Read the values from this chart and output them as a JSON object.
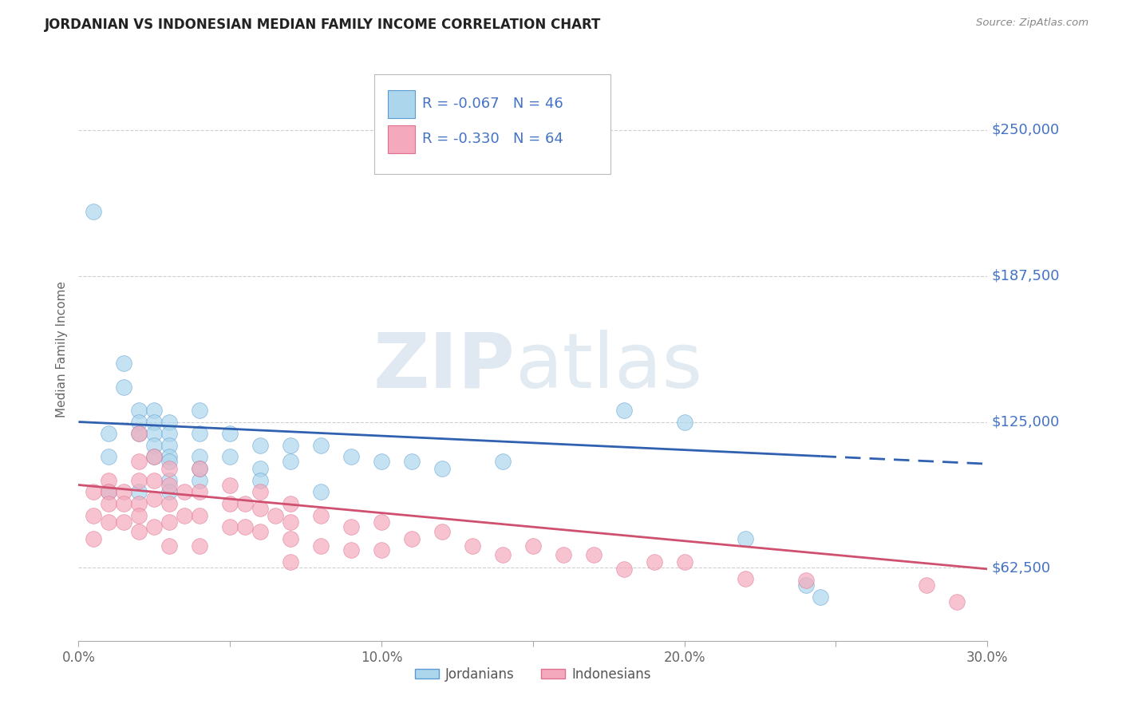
{
  "title": "JORDANIAN VS INDONESIAN MEDIAN FAMILY INCOME CORRELATION CHART",
  "source_text": "Source: ZipAtlas.com",
  "ylabel": "Median Family Income",
  "xlim": [
    0.0,
    0.3
  ],
  "ylim": [
    31250,
    281250
  ],
  "yticks": [
    62500,
    125000,
    187500,
    250000
  ],
  "ytick_labels": [
    "$62,500",
    "$125,000",
    "$187,500",
    "$250,000"
  ],
  "xticks": [
    0.0,
    0.05,
    0.1,
    0.15,
    0.2,
    0.25,
    0.3
  ],
  "xtick_labels": [
    "0.0%",
    "",
    "10.0%",
    "",
    "20.0%",
    "",
    "30.0%"
  ],
  "jordanians_R": -0.067,
  "jordanians_N": 46,
  "indonesians_R": -0.33,
  "indonesians_N": 64,
  "jordanian_fill": "#ACD6EC",
  "jordanian_edge": "#5B9BD5",
  "indonesian_fill": "#F4AABC",
  "indonesian_edge": "#E07090",
  "jordanian_line_color": "#3060B0",
  "indonesian_line_color": "#D05070",
  "background_color": "#FFFFFF",
  "grid_color": "#BBBBBB",
  "axis_label_color": "#4472C4",
  "title_color": "#222222",
  "watermark_zip": "ZIP",
  "watermark_atlas": "atlas",
  "jordanians_x": [
    0.005,
    0.01,
    0.01,
    0.015,
    0.015,
    0.02,
    0.02,
    0.02,
    0.025,
    0.025,
    0.025,
    0.025,
    0.025,
    0.03,
    0.03,
    0.03,
    0.03,
    0.03,
    0.03,
    0.04,
    0.04,
    0.04,
    0.04,
    0.05,
    0.05,
    0.06,
    0.06,
    0.07,
    0.07,
    0.08,
    0.09,
    0.1,
    0.11,
    0.12,
    0.14,
    0.18,
    0.2,
    0.22,
    0.24,
    0.245,
    0.01,
    0.02,
    0.03,
    0.04,
    0.06,
    0.08
  ],
  "jordanians_y": [
    215000,
    120000,
    110000,
    150000,
    140000,
    130000,
    125000,
    120000,
    130000,
    125000,
    120000,
    115000,
    110000,
    125000,
    120000,
    115000,
    110000,
    108000,
    100000,
    130000,
    120000,
    110000,
    100000,
    120000,
    110000,
    115000,
    105000,
    115000,
    108000,
    115000,
    110000,
    108000,
    108000,
    105000,
    108000,
    130000,
    125000,
    75000,
    55000,
    50000,
    95000,
    95000,
    95000,
    105000,
    100000,
    95000
  ],
  "indonesians_x": [
    0.005,
    0.005,
    0.005,
    0.01,
    0.01,
    0.01,
    0.01,
    0.015,
    0.015,
    0.015,
    0.02,
    0.02,
    0.02,
    0.02,
    0.02,
    0.02,
    0.025,
    0.025,
    0.025,
    0.025,
    0.03,
    0.03,
    0.03,
    0.03,
    0.03,
    0.035,
    0.035,
    0.04,
    0.04,
    0.04,
    0.04,
    0.05,
    0.05,
    0.05,
    0.055,
    0.055,
    0.06,
    0.06,
    0.06,
    0.065,
    0.07,
    0.07,
    0.07,
    0.07,
    0.08,
    0.08,
    0.09,
    0.09,
    0.1,
    0.1,
    0.11,
    0.12,
    0.13,
    0.14,
    0.15,
    0.16,
    0.17,
    0.18,
    0.19,
    0.2,
    0.22,
    0.24,
    0.28,
    0.29
  ],
  "indonesians_y": [
    95000,
    85000,
    75000,
    100000,
    95000,
    90000,
    82000,
    95000,
    90000,
    82000,
    120000,
    108000,
    100000,
    90000,
    85000,
    78000,
    110000,
    100000,
    92000,
    80000,
    105000,
    98000,
    90000,
    82000,
    72000,
    95000,
    85000,
    105000,
    95000,
    85000,
    72000,
    98000,
    90000,
    80000,
    90000,
    80000,
    95000,
    88000,
    78000,
    85000,
    90000,
    82000,
    75000,
    65000,
    85000,
    72000,
    80000,
    70000,
    82000,
    70000,
    75000,
    78000,
    72000,
    68000,
    72000,
    68000,
    68000,
    62000,
    65000,
    65000,
    58000,
    57000,
    55000,
    48000
  ]
}
